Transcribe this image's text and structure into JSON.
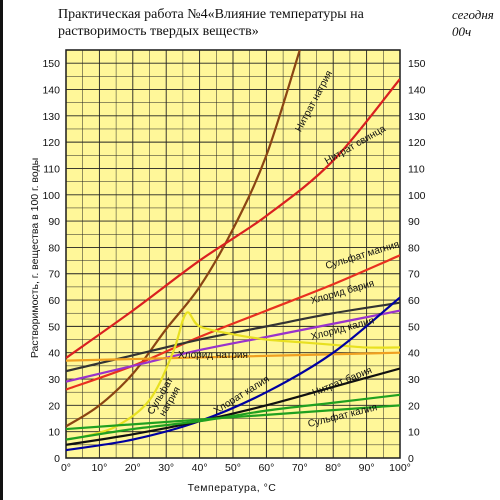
{
  "title_line1": "Практическая работа №4«Влияние температуры на",
  "title_line2": "растворимость твердых веществ»",
  "note_line1": "сегодня",
  "note_line2": "00ч",
  "chart_data": {
    "type": "line",
    "xlabel": "Температура, °C",
    "ylabel": "Растворимость, г. вещества в 100 г. воды",
    "xlim": [
      0,
      100
    ],
    "ylim": [
      0,
      155
    ],
    "x_ticks": [
      "0°",
      "10°",
      "20°",
      "30°",
      "40°",
      "50°",
      "60°",
      "70°",
      "80°",
      "90°",
      "100°"
    ],
    "y_ticks": [
      "0",
      "10",
      "20",
      "30",
      "40",
      "50",
      "60",
      "70",
      "80",
      "90",
      "100",
      "110",
      "120",
      "130",
      "140",
      "150"
    ],
    "grid": true,
    "background": "#fff799",
    "series": [
      {
        "name": "Нитрат натрия",
        "color": "#8b4513",
        "x": [
          0,
          10,
          20,
          30,
          40,
          50,
          60,
          70
        ],
        "y": [
          12,
          20,
          32,
          49,
          65,
          87,
          115,
          155
        ]
      },
      {
        "name": "Нитрат свинца",
        "color": "#d92020",
        "x": [
          0,
          20,
          40,
          60,
          80,
          100
        ],
        "y": [
          38,
          56,
          75,
          92,
          113,
          144
        ]
      },
      {
        "name": "Сульфат магния",
        "color": "#e83020",
        "x": [
          0,
          20,
          40,
          60,
          80,
          100
        ],
        "y": [
          26,
          35,
          46,
          56,
          66,
          77
        ]
      },
      {
        "name": "Хлорид бария",
        "color": "#333333",
        "x": [
          0,
          20,
          40,
          60,
          80,
          100
        ],
        "y": [
          33,
          39,
          45,
          50,
          55,
          59
        ]
      },
      {
        "name": "Хлорид калия",
        "color": "#9933cc",
        "x": [
          0,
          20,
          40,
          60,
          80,
          100
        ],
        "y": [
          29,
          35,
          41,
          46,
          51,
          56
        ]
      },
      {
        "name": "Хлорид натрия",
        "color": "#f0a020",
        "x": [
          0,
          100
        ],
        "y": [
          37,
          40
        ]
      },
      {
        "name": "Сульфат натрия",
        "color": "#e8e020",
        "x": [
          5,
          15,
          25,
          32,
          36,
          40,
          50,
          60,
          70,
          80,
          90,
          100
        ],
        "y": [
          8,
          12,
          22,
          40,
          55,
          50,
          47,
          45,
          44,
          43,
          42,
          42
        ]
      },
      {
        "name": "Хлорат калия",
        "color": "#0000a0",
        "x": [
          0,
          20,
          40,
          60,
          80,
          100
        ],
        "y": [
          3,
          7,
          14,
          25,
          40,
          61
        ]
      },
      {
        "name": "Нитрат бария",
        "color": "#111111",
        "x": [
          0,
          20,
          40,
          60,
          80,
          100
        ],
        "y": [
          5,
          9,
          14,
          20,
          27,
          34
        ]
      },
      {
        "name": "Сульфат калия",
        "color": "#20a020",
        "x": [
          0,
          20,
          40,
          60,
          80,
          100
        ],
        "y": [
          7,
          11,
          14,
          18,
          21,
          24
        ]
      },
      {
        "name": "",
        "color": "#20a020",
        "x": [
          0,
          100
        ],
        "y": [
          11,
          20
        ]
      }
    ]
  }
}
